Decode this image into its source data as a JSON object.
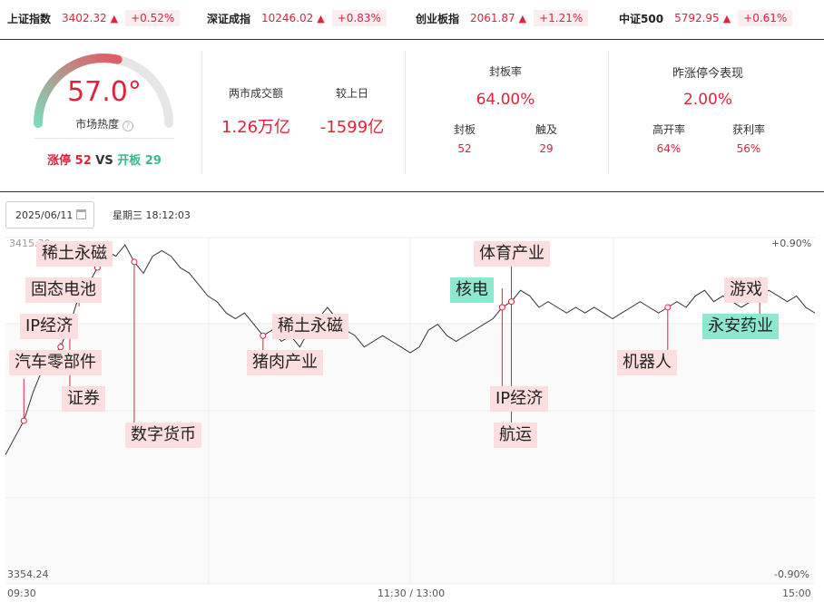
{
  "ticker": [
    {
      "name": "上证指数",
      "price": "3402.32",
      "arrow": "▲",
      "pct": "+0.52%"
    },
    {
      "name": "深证成指",
      "price": "10246.02",
      "arrow": "▲",
      "pct": "+0.83%"
    },
    {
      "name": "创业板指",
      "price": "2061.87",
      "arrow": "▲",
      "pct": "+1.21%"
    },
    {
      "name": "中证500",
      "price": "5792.95",
      "arrow": "▲",
      "pct": "+0.61%"
    }
  ],
  "heat": {
    "value": "57.0°",
    "label": "市场热度",
    "help": "?",
    "level": 0.57,
    "limit_up_label": "涨停",
    "limit_up": "52",
    "vs": "VS",
    "open_label": "开板",
    "open": "29"
  },
  "turnover": {
    "label": "两市成交额",
    "value": "1.26万亿",
    "diff_label": "较上日",
    "diff": "-1599亿"
  },
  "seal": {
    "title": "封板率",
    "rate": "64.00%",
    "seal_label": "封板",
    "seal": "52",
    "touch_label": "触及",
    "touch": "29"
  },
  "yesterday": {
    "title": "昨涨停今表现",
    "value": "2.00%",
    "high_open_label": "高开率",
    "high_open": "64%",
    "profit_label": "获利率",
    "profit": "56%"
  },
  "date": {
    "value": "2025/06/11",
    "weekday": "星期三",
    "time": "18:12:03"
  },
  "chart_data": {
    "type": "line",
    "y_max_label": "3415.30",
    "y_min_label": "3354.24",
    "pct_max_label": "+0.90%",
    "pct_min_label": "-0.90%",
    "x_labels": [
      "09:30",
      "11:30 / 13:00",
      "15:00"
    ],
    "ylim": [
      3354.24,
      3415.3
    ],
    "series": [
      {
        "values": [
          3377,
          3380,
          3383,
          3388,
          3392,
          3394,
          3396,
          3400,
          3405,
          3407,
          3410,
          3413,
          3412,
          3414,
          3411,
          3409,
          3412,
          3413,
          3412,
          3410,
          3409,
          3407,
          3405,
          3404,
          3402,
          3401,
          3402,
          3400,
          3398,
          3399,
          3397,
          3398,
          3396,
          3399,
          3401,
          3403,
          3401,
          3399,
          3398,
          3396,
          3397,
          3398,
          3397,
          3396,
          3395,
          3396,
          3399,
          3400,
          3398,
          3397,
          3398,
          3399,
          3400,
          3401,
          3403,
          3404,
          3406,
          3405,
          3403,
          3404,
          3403,
          3402,
          3403,
          3402,
          3403,
          3402,
          3401,
          3402,
          3403,
          3404,
          3403,
          3402,
          3403,
          3404,
          3403,
          3405,
          3406,
          3404,
          3405,
          3404,
          3403,
          3404,
          3405,
          3406,
          3405,
          3404,
          3405,
          3403,
          3402
        ]
      }
    ],
    "tags": [
      "稀土永磁",
      "固态电池",
      "IP经济",
      "汽车零部件",
      "证券",
      "数字货币",
      "猪肉产业",
      "稀土永磁",
      "体育产业",
      "核电",
      "IP经济",
      "航运",
      "机器人",
      "游戏",
      "永安药业"
    ]
  }
}
